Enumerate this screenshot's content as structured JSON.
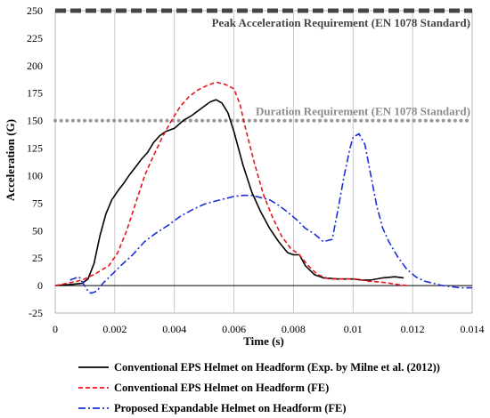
{
  "chart_data": {
    "type": "line",
    "xlabel": "Time (s)",
    "ylabel": "Acceleration (G)",
    "xlim": [
      0,
      0.014
    ],
    "ylim": [
      -25,
      250
    ],
    "x_ticks": [
      0,
      0.002,
      0.004,
      0.006,
      0.008,
      0.01,
      0.012,
      0.014
    ],
    "x_tick_labels": [
      "0",
      "0.002",
      "0.004",
      "0.006",
      "0.008",
      "0.01",
      "0.012",
      "0.014"
    ],
    "y_ticks": [
      -25,
      0,
      25,
      50,
      75,
      100,
      125,
      150,
      175,
      200,
      225,
      250
    ],
    "y_tick_labels": [
      "-25",
      "0",
      "25",
      "50",
      "75",
      "100",
      "125",
      "150",
      "175",
      "200",
      "225",
      "250"
    ],
    "grid": "vertical",
    "legend_position": "bottom",
    "reference_lines": [
      {
        "label": "Peak Acceleration Requirement (EN 1078 Standard)",
        "y": 250,
        "color": "#444444",
        "style": "dashed"
      },
      {
        "label": "Duration Requirement (EN 1078 Standard)",
        "y": 150,
        "color": "#999999",
        "style": "dotted"
      }
    ],
    "series": [
      {
        "name": "Conventional EPS Helmet on Headform (Exp. by Milne et al. (2012))",
        "color": "#000000",
        "style": "solid",
        "points": [
          [
            0,
            0
          ],
          [
            0.0005,
            1
          ],
          [
            0.0009,
            2
          ],
          [
            0.0011,
            6
          ],
          [
            0.0013,
            20
          ],
          [
            0.0015,
            45
          ],
          [
            0.0017,
            65
          ],
          [
            0.0019,
            78
          ],
          [
            0.0021,
            86
          ],
          [
            0.0023,
            93
          ],
          [
            0.0025,
            101
          ],
          [
            0.0027,
            108
          ],
          [
            0.0029,
            115
          ],
          [
            0.0031,
            121
          ],
          [
            0.0033,
            130
          ],
          [
            0.0035,
            136
          ],
          [
            0.0037,
            140
          ],
          [
            0.004,
            143
          ],
          [
            0.0043,
            150
          ],
          [
            0.0046,
            155
          ],
          [
            0.0049,
            161
          ],
          [
            0.0052,
            167
          ],
          [
            0.0054,
            169
          ],
          [
            0.0056,
            166
          ],
          [
            0.0058,
            157
          ],
          [
            0.006,
            140
          ],
          [
            0.0063,
            110
          ],
          [
            0.0066,
            85
          ],
          [
            0.0069,
            67
          ],
          [
            0.0072,
            52
          ],
          [
            0.0075,
            40
          ],
          [
            0.0078,
            30
          ],
          [
            0.008,
            28
          ],
          [
            0.0082,
            28
          ],
          [
            0.0084,
            18
          ],
          [
            0.0087,
            10
          ],
          [
            0.009,
            7
          ],
          [
            0.0095,
            6
          ],
          [
            0.01,
            6
          ],
          [
            0.0103,
            5
          ],
          [
            0.0106,
            5
          ],
          [
            0.011,
            7
          ],
          [
            0.0114,
            8
          ],
          [
            0.0117,
            7
          ]
        ]
      },
      {
        "name": "Conventional EPS Helmet on Headform (FE)",
        "color": "#e8141e",
        "style": "dashed",
        "points": [
          [
            0,
            0
          ],
          [
            0.0004,
            2
          ],
          [
            0.0009,
            5
          ],
          [
            0.0013,
            10
          ],
          [
            0.0018,
            18
          ],
          [
            0.0021,
            30
          ],
          [
            0.0024,
            50
          ],
          [
            0.0027,
            75
          ],
          [
            0.003,
            100
          ],
          [
            0.0033,
            118
          ],
          [
            0.0036,
            135
          ],
          [
            0.0039,
            150
          ],
          [
            0.0042,
            163
          ],
          [
            0.0045,
            172
          ],
          [
            0.0048,
            178
          ],
          [
            0.0051,
            182
          ],
          [
            0.0054,
            185
          ],
          [
            0.0057,
            183
          ],
          [
            0.006,
            179
          ],
          [
            0.0062,
            165
          ],
          [
            0.0064,
            142
          ],
          [
            0.0067,
            110
          ],
          [
            0.007,
            82
          ],
          [
            0.0073,
            62
          ],
          [
            0.0076,
            45
          ],
          [
            0.0079,
            34
          ],
          [
            0.0082,
            28
          ],
          [
            0.0085,
            18
          ],
          [
            0.0088,
            10
          ],
          [
            0.0092,
            6
          ],
          [
            0.0097,
            6
          ],
          [
            0.0101,
            6
          ],
          [
            0.0105,
            4
          ],
          [
            0.011,
            3
          ],
          [
            0.0115,
            1
          ],
          [
            0.0118,
            0
          ]
        ]
      },
      {
        "name": "Proposed Expandable Helmet on Headform (FE)",
        "color": "#1a2fd6",
        "style": "dashdot",
        "points": [
          [
            0.0005,
            5
          ],
          [
            0.0008,
            8
          ],
          [
            0.0011,
            -5
          ],
          [
            0.0012,
            -7
          ],
          [
            0.0014,
            -5
          ],
          [
            0.0016,
            2
          ],
          [
            0.0019,
            10
          ],
          [
            0.0022,
            18
          ],
          [
            0.0026,
            28
          ],
          [
            0.003,
            40
          ],
          [
            0.0034,
            48
          ],
          [
            0.0038,
            55
          ],
          [
            0.0042,
            63
          ],
          [
            0.0046,
            69
          ],
          [
            0.005,
            74
          ],
          [
            0.0054,
            77
          ],
          [
            0.0057,
            79
          ],
          [
            0.006,
            81
          ],
          [
            0.0063,
            82
          ],
          [
            0.0066,
            82
          ],
          [
            0.0069,
            80
          ],
          [
            0.0072,
            78
          ],
          [
            0.0075,
            73
          ],
          [
            0.0078,
            67
          ],
          [
            0.0081,
            60
          ],
          [
            0.0084,
            52
          ],
          [
            0.0087,
            47
          ],
          [
            0.009,
            40
          ],
          [
            0.0093,
            42
          ],
          [
            0.0095,
            70
          ],
          [
            0.0097,
            100
          ],
          [
            0.0099,
            125
          ],
          [
            0.01,
            135
          ],
          [
            0.0102,
            138
          ],
          [
            0.0104,
            128
          ],
          [
            0.0106,
            100
          ],
          [
            0.0108,
            72
          ],
          [
            0.011,
            52
          ],
          [
            0.0112,
            40
          ],
          [
            0.0115,
            26
          ],
          [
            0.0118,
            15
          ],
          [
            0.0121,
            8
          ],
          [
            0.0124,
            4
          ],
          [
            0.0127,
            2
          ],
          [
            0.013,
            0
          ],
          [
            0.0133,
            -1
          ],
          [
            0.0136,
            -2
          ],
          [
            0.014,
            -2
          ]
        ]
      }
    ]
  }
}
